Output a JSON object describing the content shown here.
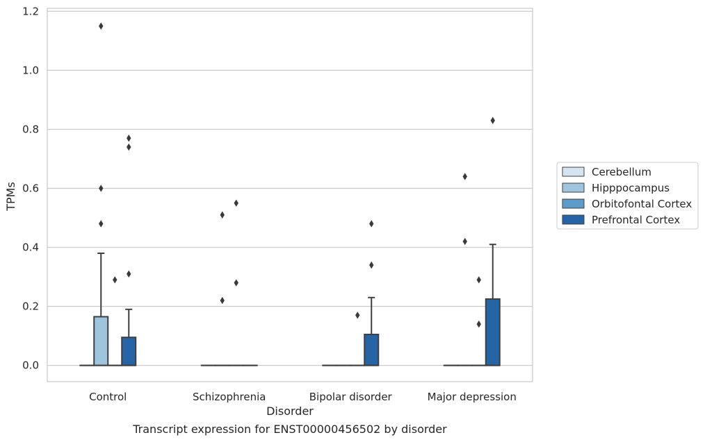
{
  "chart_data": {
    "type": "box",
    "title": "",
    "caption": "Transcript expression for ENST00000456502 by disorder",
    "xlabel": "Disorder",
    "ylabel": "TPMs",
    "ylim": [
      -0.055,
      1.21
    ],
    "yticks": [
      "0.0",
      "0.2",
      "0.4",
      "0.6",
      "0.8",
      "1.0",
      "1.2"
    ],
    "grid": "horizontal",
    "legend_position": "right",
    "categories": [
      "Control",
      "Schizophrenia",
      "Bipolar disorder",
      "Major depression"
    ],
    "series": [
      {
        "name": "Cerebellum",
        "color": "#d6e4f1",
        "boxes": [
          {
            "q1": 0,
            "median": 0,
            "q3": 0,
            "whisker_low": 0,
            "whisker_high": 0,
            "outliers": []
          },
          {
            "q1": 0,
            "median": 0,
            "q3": 0,
            "whisker_low": 0,
            "whisker_high": 0,
            "outliers": []
          },
          {
            "q1": 0,
            "median": 0,
            "q3": 0,
            "whisker_low": 0,
            "whisker_high": 0,
            "outliers": []
          },
          {
            "q1": 0,
            "median": 0,
            "q3": 0,
            "whisker_low": 0,
            "whisker_high": 0,
            "outliers": []
          }
        ]
      },
      {
        "name": "Hipppocampus",
        "color": "#9fc5de",
        "boxes": [
          {
            "q1": 0,
            "median": 0,
            "q3": 0.165,
            "whisker_low": 0,
            "whisker_high": 0.38,
            "outliers": [
              0.6,
              0.48,
              1.15
            ]
          },
          {
            "q1": 0,
            "median": 0,
            "q3": 0,
            "whisker_low": 0,
            "whisker_high": 0,
            "outliers": [
              0.51,
              0.22
            ]
          },
          {
            "q1": 0,
            "median": 0,
            "q3": 0,
            "whisker_low": 0,
            "whisker_high": 0,
            "outliers": []
          },
          {
            "q1": 0,
            "median": 0,
            "q3": 0,
            "whisker_low": 0,
            "whisker_high": 0,
            "outliers": [
              0.64,
              0.42
            ]
          }
        ]
      },
      {
        "name": "Orbitofontal Cortex",
        "color": "#5c9bca",
        "boxes": [
          {
            "q1": 0,
            "median": 0,
            "q3": 0,
            "whisker_low": 0,
            "whisker_high": 0,
            "outliers": [
              0.29
            ]
          },
          {
            "q1": 0,
            "median": 0,
            "q3": 0,
            "whisker_low": 0,
            "whisker_high": 0,
            "outliers": [
              0.55,
              0.28
            ]
          },
          {
            "q1": 0,
            "median": 0,
            "q3": 0,
            "whisker_low": 0,
            "whisker_high": 0,
            "outliers": [
              0.17
            ]
          },
          {
            "q1": 0,
            "median": 0,
            "q3": 0,
            "whisker_low": 0,
            "whisker_high": 0,
            "outliers": [
              0.29,
              0.14
            ]
          }
        ]
      },
      {
        "name": "Prefrontal Cortex",
        "color": "#2565a6",
        "boxes": [
          {
            "q1": 0,
            "median": 0,
            "q3": 0.095,
            "whisker_low": 0,
            "whisker_high": 0.19,
            "outliers": [
              0.77,
              0.74,
              0.31
            ]
          },
          {
            "q1": 0,
            "median": 0,
            "q3": 0,
            "whisker_low": 0,
            "whisker_high": 0,
            "outliers": []
          },
          {
            "q1": 0,
            "median": 0,
            "q3": 0.105,
            "whisker_low": 0,
            "whisker_high": 0.23,
            "outliers": [
              0.48,
              0.34
            ]
          },
          {
            "q1": 0,
            "median": 0,
            "q3": 0.225,
            "whisker_low": 0,
            "whisker_high": 0.41,
            "outliers": [
              0.83
            ]
          }
        ]
      }
    ]
  }
}
